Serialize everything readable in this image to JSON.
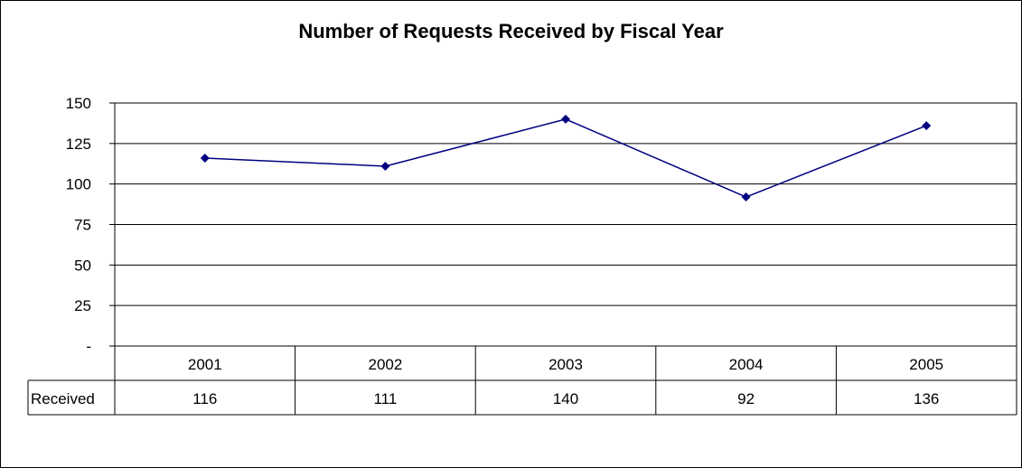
{
  "chart_data": {
    "type": "line",
    "title": "Number of Requests Received by Fiscal Year",
    "categories": [
      "2001",
      "2002",
      "2003",
      "2004",
      "2005"
    ],
    "series": [
      {
        "name": "Received",
        "values": [
          116,
          111,
          140,
          92,
          136
        ]
      }
    ],
    "value_labels": [
      "116",
      "111",
      "140",
      "92",
      "136"
    ],
    "y_ticks": [
      0,
      25,
      50,
      75,
      100,
      125,
      150
    ],
    "y_tick_labels": [
      "-",
      "25",
      "50",
      "75",
      "100",
      "125",
      "150"
    ],
    "ylim": [
      0,
      150
    ],
    "grid": true,
    "legend": "data-table",
    "line_color": "#000080"
  }
}
